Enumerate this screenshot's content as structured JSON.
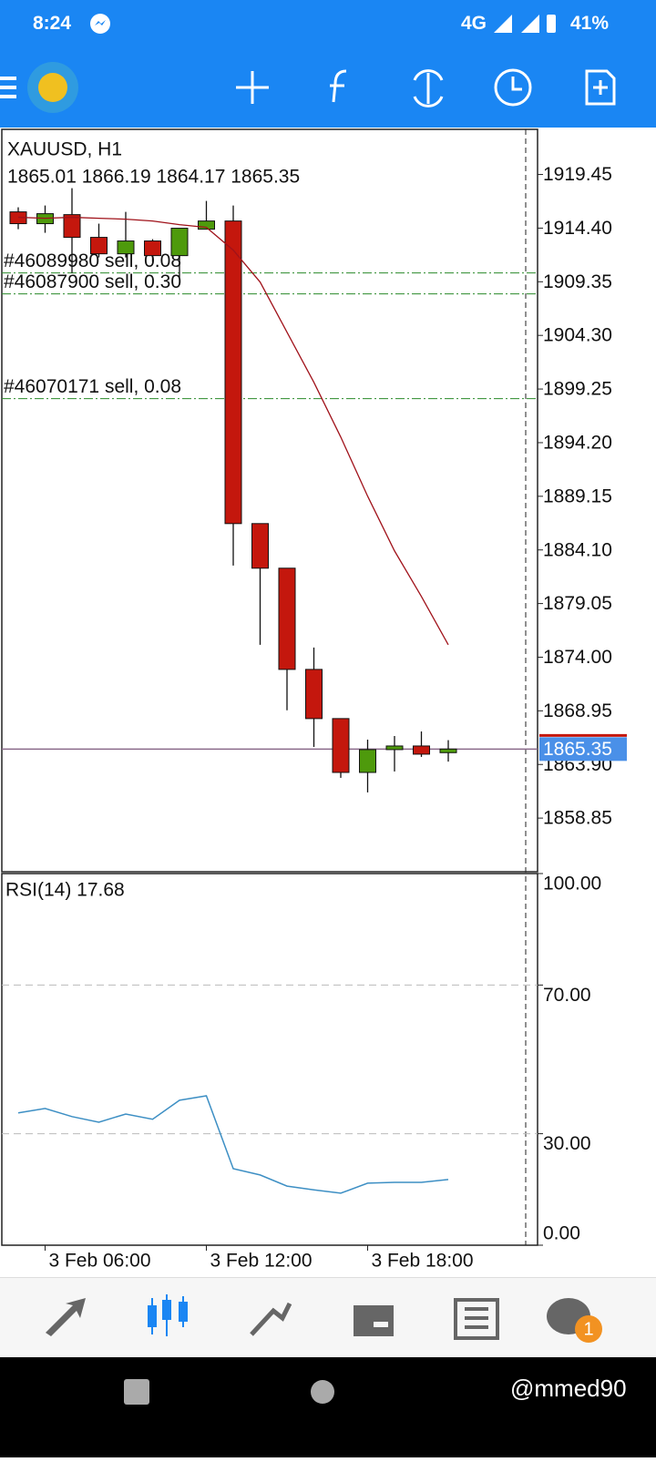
{
  "status_bar": {
    "time": "8:24",
    "network": "4G",
    "battery": "41%"
  },
  "chart": {
    "type": "candlestick",
    "symbol": "XAUUSD, H1",
    "ohlc_text": "1865.01 1866.19 1864.17 1865.35",
    "categories": [
      null,
      "3 Feb 06:00",
      null,
      null,
      null,
      null,
      null,
      "3 Feb 12:00",
      null,
      null,
      null,
      null,
      null,
      "3 Feb 18:00",
      null,
      null,
      null
    ],
    "open": [
      1915.93,
      1914.82,
      1915.67,
      1913.53,
      1911.98,
      1913.19,
      1911.81,
      1914.3,
      1915.07,
      1886.58,
      1882.38,
      1872.85,
      1868.22,
      1863.15,
      1865.3,
      1865.64,
      1865.01
    ],
    "high": [
      1916.36,
      1916.53,
      1918.16,
      1914.82,
      1915.93,
      1913.36,
      1914.39,
      1916.96,
      1916.53,
      1886.58,
      1882.38,
      1874.91,
      1868.22,
      1866.24,
      1866.58,
      1867.01,
      1866.19
    ],
    "low": [
      1914.3,
      1913.96,
      1910.18,
      1911.64,
      1911.64,
      1911.21,
      1909.75,
      1914.3,
      1882.63,
      1875.17,
      1869.0,
      1865.55,
      1862.64,
      1861.27,
      1863.24,
      1864.61,
      1864.17
    ],
    "close": [
      1914.82,
      1915.76,
      1913.53,
      1911.98,
      1913.19,
      1911.81,
      1914.39,
      1915.07,
      1886.58,
      1882.38,
      1872.85,
      1868.22,
      1863.15,
      1865.3,
      1865.64,
      1864.87,
      1865.35
    ],
    "bull_color": "#4e9a0c",
    "bear_color": "#c4170d",
    "ma": {
      "color": "#a0121a",
      "values": [
        1915.42,
        1915.33,
        1915.42,
        1915.33,
        1915.24,
        1915.07,
        1914.73,
        1914.47,
        1912.33,
        1909.32,
        1904.6,
        1899.88,
        1894.73,
        1889.16,
        1884.01,
        1879.72,
        1875.17
      ]
    },
    "ylim": [
      1853.8,
      1923.7
    ],
    "yticks": [
      1919.45,
      {
        "value": 1914.4,
        "label": "1914.40"
      },
      1909.35,
      {
        "value": 1904.3,
        "label": "1904.30"
      },
      1899.25,
      {
        "value": 1894.2,
        "label": "1894.20"
      },
      1889.15,
      {
        "value": 1884.1,
        "label": "1884.10"
      },
      1879.05,
      {
        "value": 1874.0,
        "label": "1874.00"
      },
      1868.95,
      {
        "value": 1863.9,
        "label": "1863.90"
      },
      1858.85
    ],
    "current_price": 1865.35,
    "orders": [
      {
        "label": "#46089980 sell, 0.08",
        "price": 1910.18
      },
      {
        "label": "#46087900 sell, 0.30",
        "price": 1908.21
      },
      {
        "label": "#46070171 sell, 0.08",
        "price": 1898.34
      }
    ],
    "rsi": {
      "label": "RSI(14) 17.68",
      "color": "#3d8fc4",
      "values": [
        35.6,
        36.8,
        34.6,
        33.1,
        35.3,
        33.9,
        39.0,
        40.2,
        20.6,
        18.9,
        15.9,
        14.9,
        14.0,
        16.7,
        16.9,
        16.9,
        17.68
      ],
      "ylim": [
        0,
        100
      ],
      "yticks": [
        {
          "value": 100,
          "label": "100.00"
        },
        {
          "value": 70,
          "label": "70.00"
        },
        {
          "value": 30,
          "label": "30.00"
        },
        {
          "value": 0,
          "label": "0.00"
        }
      ],
      "levels": [
        70,
        30
      ]
    }
  },
  "nav": {
    "badge": "1"
  },
  "watermark": "@mmed90"
}
